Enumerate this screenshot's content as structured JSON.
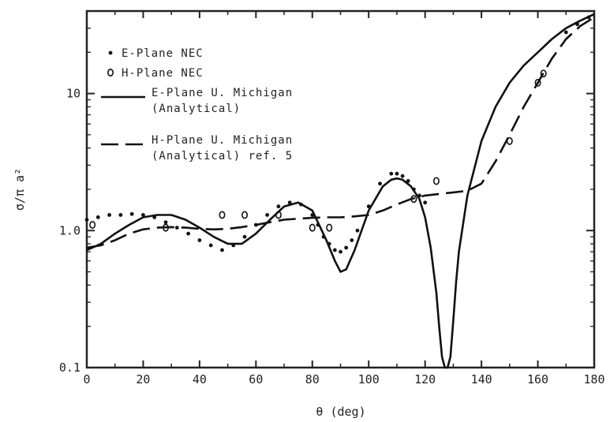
{
  "chart_data": {
    "type": "line",
    "xlabel": "θ (deg)",
    "ylabel": "σ/π a²",
    "xlim": [
      0,
      180
    ],
    "ylim": [
      0.1,
      40
    ],
    "yscale": "log",
    "x_ticks": [
      0,
      20,
      40,
      60,
      80,
      100,
      120,
      140,
      160,
      180
    ],
    "x_tick_labels": [
      "0",
      "20",
      "40",
      "60",
      "80",
      "100",
      "120",
      "140",
      "160",
      "180"
    ],
    "y_ticks": [
      0.1,
      1.0,
      10
    ],
    "y_tick_labels": [
      "0.1",
      "1.0",
      "10"
    ],
    "grid": false,
    "legend_position": "top-left",
    "legend": [
      {
        "symbol": "•",
        "lines": [
          "E-Plane NEC"
        ]
      },
      {
        "symbol": "o",
        "lines": [
          "H-Plane NEC"
        ]
      },
      {
        "lines": [
          "E-Plane U. Michigan",
          "(Analytical)"
        ]
      },
      {
        "lines": [
          "H-Plane U. Michigan",
          "(Analytical) ref. 5"
        ]
      }
    ],
    "series": [
      {
        "style": "dots",
        "x": [
          0,
          4,
          8,
          12,
          16,
          20,
          24,
          28,
          32,
          36,
          40,
          44,
          48,
          52,
          56,
          60,
          64,
          68,
          72,
          76,
          80,
          82,
          84,
          86,
          88,
          90,
          92,
          94,
          96,
          100,
          104,
          108,
          110,
          112,
          114,
          116,
          118,
          120,
          170,
          174,
          178
        ],
        "y": [
          1.2,
          1.25,
          1.3,
          1.3,
          1.32,
          1.3,
          1.25,
          1.15,
          1.05,
          0.95,
          0.85,
          0.78,
          0.72,
          0.78,
          0.9,
          1.1,
          1.3,
          1.5,
          1.6,
          1.55,
          1.3,
          1.1,
          0.9,
          0.8,
          0.72,
          0.7,
          0.75,
          0.85,
          1.0,
          1.5,
          2.2,
          2.6,
          2.6,
          2.5,
          2.3,
          2.0,
          1.8,
          1.6,
          28,
          32,
          36
        ]
      },
      {
        "style": "circles",
        "x": [
          2,
          28,
          48,
          56,
          68,
          80,
          86,
          116,
          124,
          150,
          160,
          162
        ],
        "y": [
          1.1,
          1.05,
          1.3,
          1.3,
          1.3,
          1.05,
          1.05,
          1.7,
          2.3,
          4.5,
          12,
          14
        ]
      },
      {
        "style": "solid",
        "x": [
          0,
          5,
          10,
          15,
          20,
          25,
          30,
          35,
          40,
          45,
          50,
          55,
          60,
          65,
          70,
          75,
          80,
          85,
          88,
          90,
          92,
          95,
          100,
          105,
          108,
          110,
          112,
          115,
          118,
          120,
          122,
          124,
          125,
          126,
          127,
          128,
          129,
          130,
          131,
          132,
          135,
          140,
          145,
          150,
          155,
          160,
          165,
          170,
          175,
          180
        ],
        "y": [
          0.72,
          0.8,
          0.95,
          1.1,
          1.25,
          1.3,
          1.3,
          1.2,
          1.05,
          0.9,
          0.8,
          0.8,
          0.95,
          1.2,
          1.5,
          1.6,
          1.4,
          0.85,
          0.6,
          0.5,
          0.52,
          0.72,
          1.4,
          2.1,
          2.35,
          2.4,
          2.35,
          2.1,
          1.7,
          1.25,
          0.75,
          0.35,
          0.2,
          0.12,
          0.1,
          0.1,
          0.12,
          0.22,
          0.42,
          0.7,
          1.8,
          4.5,
          8,
          12,
          16,
          20,
          25,
          30,
          34,
          38
        ]
      },
      {
        "style": "dashed",
        "x": [
          0,
          5,
          10,
          15,
          20,
          25,
          30,
          35,
          40,
          45,
          50,
          55,
          60,
          65,
          70,
          75,
          80,
          85,
          90,
          95,
          100,
          105,
          110,
          115,
          120,
          125,
          130,
          135,
          140,
          145,
          150,
          155,
          160,
          165,
          170,
          175,
          180
        ],
        "y": [
          0.75,
          0.78,
          0.85,
          0.95,
          1.02,
          1.05,
          1.06,
          1.05,
          1.03,
          1.02,
          1.03,
          1.06,
          1.1,
          1.15,
          1.2,
          1.22,
          1.24,
          1.25,
          1.25,
          1.27,
          1.3,
          1.4,
          1.55,
          1.7,
          1.8,
          1.85,
          1.9,
          1.95,
          2.2,
          3.2,
          5,
          8,
          12,
          18,
          25,
          31,
          36
        ]
      }
    ]
  }
}
